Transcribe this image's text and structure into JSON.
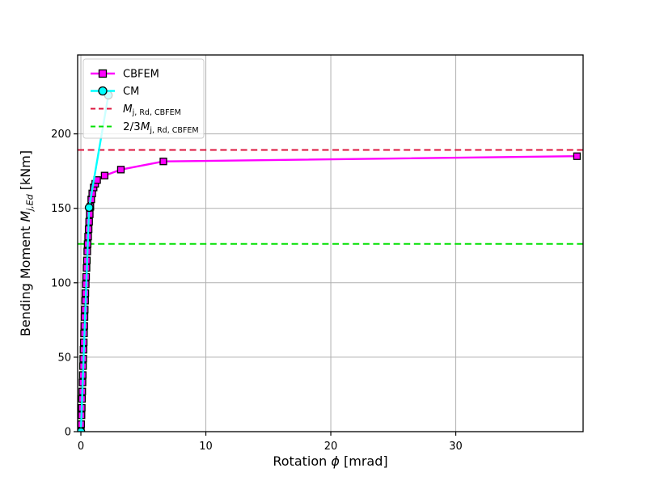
{
  "chart_data": {
    "type": "line",
    "title": "",
    "xlabel": {
      "pre": "Rotation ",
      "var": "ϕ",
      "post": " [mrad]"
    },
    "ylabel": {
      "pre": "Bending Moment ",
      "var": "M",
      "sub": "j,Ed",
      "sub_italic": true,
      "post": " [kNm]"
    },
    "xlim": [
      -0.26,
      40.19
    ],
    "ylim": [
      0,
      253
    ],
    "xticks": [
      0,
      10,
      20,
      30
    ],
    "yticks": [
      0,
      50,
      100,
      150,
      200
    ],
    "grid": true,
    "grid_color": "#b0b0b0",
    "legend_position": "upper left",
    "series": [
      {
        "name": "CBFEM",
        "color": "#FF00FF",
        "marker": "square",
        "marker_edge": "#000000",
        "points": [
          [
            0,
            0
          ],
          [
            0.02,
            5
          ],
          [
            0.05,
            11
          ],
          [
            0.07,
            16
          ],
          [
            0.09,
            22
          ],
          [
            0.11,
            27
          ],
          [
            0.13,
            33
          ],
          [
            0.15,
            38
          ],
          [
            0.17,
            44
          ],
          [
            0.19,
            49
          ],
          [
            0.21,
            55
          ],
          [
            0.23,
            60
          ],
          [
            0.25,
            66
          ],
          [
            0.27,
            71
          ],
          [
            0.29,
            77
          ],
          [
            0.31,
            82
          ],
          [
            0.34,
            88
          ],
          [
            0.36,
            93
          ],
          [
            0.39,
            99
          ],
          [
            0.42,
            104
          ],
          [
            0.45,
            110
          ],
          [
            0.48,
            115
          ],
          [
            0.51,
            121
          ],
          [
            0.54,
            126
          ],
          [
            0.58,
            131
          ],
          [
            0.62,
            136
          ],
          [
            0.66,
            141
          ],
          [
            0.71,
            146
          ],
          [
            0.76,
            151
          ],
          [
            0.83,
            156
          ],
          [
            0.91,
            160
          ],
          [
            1.02,
            164
          ],
          [
            1.15,
            166.5
          ],
          [
            1.3,
            169
          ],
          [
            1.9,
            172
          ],
          [
            3.2,
            176
          ],
          [
            6.6,
            181.5
          ],
          [
            39.7,
            185
          ]
        ]
      },
      {
        "name": "CM",
        "color": "#00FFFF",
        "marker": "circle",
        "marker_edge": "#000000",
        "points": [
          [
            0,
            0
          ],
          [
            0.66,
            150.5
          ],
          [
            2.2,
            226
          ]
        ]
      }
    ],
    "hlines": [
      {
        "value": 189.2,
        "color": "#DC143C",
        "style": "dashed",
        "label": {
          "var": "M",
          "sub": "j, Rd, CBFEM"
        }
      },
      {
        "value": 126.1,
        "color": "#00E000",
        "style": "dashed",
        "label": {
          "prefix": "2/3",
          "var": "M",
          "sub": "j, Rd, CBFEM"
        }
      }
    ]
  }
}
